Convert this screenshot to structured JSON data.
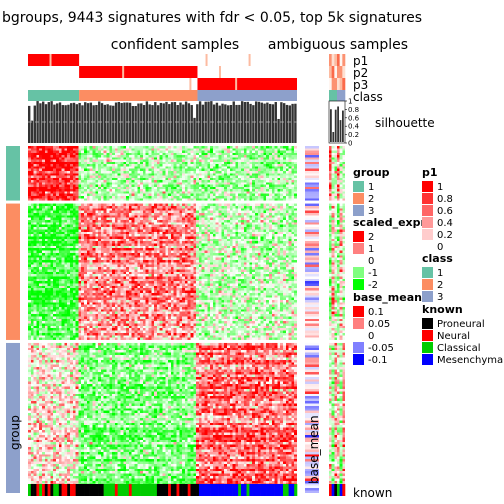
{
  "title": "bgroups, 9443 signatures with fdr < 0.05, top 5k signatures",
  "column_titles": {
    "confident": "confident samples",
    "ambiguous": "ambiguous samples"
  },
  "annotation_labels": {
    "p1": "p1",
    "p2": "p2",
    "p3": "p3",
    "class": "class",
    "silhouette": "silhouette",
    "group": "group",
    "base_mean": "base_mean",
    "known": "known"
  },
  "silhouette_axis_ticks": [
    "1",
    "0.8",
    "0.6",
    "0.4",
    "0.2",
    "0"
  ],
  "colors": {
    "group": [
      "#66C2A5",
      "#FC8D62",
      "#8DA0CB"
    ],
    "scaled_expr": [
      "#00FF00",
      "#FFFFFF",
      "#FF0000"
    ],
    "base_mean": [
      "#0000FF",
      "#FFFFFF",
      "#FF0000"
    ],
    "p_max": "#FF0000",
    "known": [
      "#000000",
      "#FF0000",
      "#00CC00",
      "#0000FF"
    ]
  },
  "chart_data": {
    "type": "heatmap",
    "title": "bgroups, 9443 signatures with fdr < 0.05, top 5k signatures",
    "row_groups": [
      {
        "name": "1",
        "fraction": 0.16
      },
      {
        "name": "2",
        "fraction": 0.4
      },
      {
        "name": "3",
        "fraction": 0.44
      }
    ],
    "column_groups": [
      {
        "class": "1",
        "fraction": 0.19
      },
      {
        "class": "2",
        "fraction": 0.44
      },
      {
        "class": "3",
        "fraction": 0.37
      }
    ],
    "confident_fraction": 0.87,
    "scaled_expr_range": [
      -2,
      2
    ],
    "base_mean_range": [
      -0.1,
      0.1
    ],
    "silhouette_range": [
      0,
      1
    ],
    "legends": [
      {
        "title": "group",
        "entries": [
          "1",
          "2",
          "3"
        ]
      },
      {
        "title": "scaled_expr",
        "entries": [
          "2",
          "1",
          "0",
          "-1",
          "-2"
        ]
      },
      {
        "title": "base_mean",
        "entries": [
          "0.1",
          "0.05",
          "0",
          "-0.05",
          "-0.1"
        ]
      },
      {
        "title": "p1",
        "entries": [
          "1",
          "0.8",
          "0.6",
          "0.4",
          "0.2",
          "0"
        ]
      },
      {
        "title": "class",
        "entries": [
          "1",
          "2",
          "3"
        ]
      },
      {
        "title": "known",
        "entries": [
          "Proneural",
          "Neural",
          "Classical",
          "Mesenchymal"
        ]
      }
    ]
  }
}
